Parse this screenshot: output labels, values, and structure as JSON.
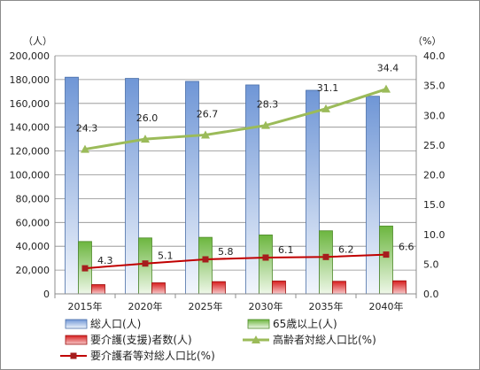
{
  "chart_data": {
    "type": "bar",
    "categories": [
      "2015年",
      "2020年",
      "2025年",
      "2030年",
      "2035年",
      "2040年"
    ],
    "left_axis": {
      "unit_label": "（人）",
      "ylim": [
        0,
        200000
      ],
      "ticks": [
        "0",
        "20,000",
        "40,000",
        "60,000",
        "80,000",
        "100,000",
        "120,000",
        "140,000",
        "160,000",
        "180,000",
        "200,000"
      ]
    },
    "right_axis": {
      "unit_label": "（%）",
      "ylim": [
        0,
        40
      ],
      "ticks": [
        "0.0",
        "5.0",
        "10.0",
        "15.0",
        "20.0",
        "25.0",
        "30.0",
        "35.0",
        "40.0"
      ]
    },
    "grid": true,
    "legend_position": "bottom",
    "series": [
      {
        "name": "総人口(人)",
        "kind": "bar",
        "axis": "left",
        "color": "#8fb0e3",
        "values": [
          182000,
          181000,
          178500,
          175500,
          171000,
          166000
        ]
      },
      {
        "name": "65歳以上(人)",
        "kind": "bar",
        "axis": "left",
        "color": "#8ecb6a",
        "values": [
          44000,
          47000,
          47500,
          49500,
          53000,
          57000
        ]
      },
      {
        "name": "要介護(支援)者数(人)",
        "kind": "bar",
        "axis": "left",
        "color": "#d81e1e",
        "values": [
          7800,
          9300,
          10300,
          10800,
          10600,
          11000
        ]
      },
      {
        "name": "高齢者対総人口比(%)",
        "kind": "line",
        "axis": "right",
        "color": "#9bbb59",
        "values": [
          24.3,
          26.0,
          26.7,
          28.3,
          31.1,
          34.4
        ],
        "labels": [
          "24.3",
          "26.0",
          "26.7",
          "28.3",
          "31.1",
          "34.4"
        ]
      },
      {
        "name": "要介護者等対総人口比(%)",
        "kind": "line",
        "axis": "right",
        "color": "#c00000",
        "values": [
          4.3,
          5.1,
          5.8,
          6.1,
          6.2,
          6.6
        ],
        "labels": [
          "4.3",
          "5.1",
          "5.8",
          "6.1",
          "6.2",
          "6.6"
        ]
      }
    ]
  }
}
